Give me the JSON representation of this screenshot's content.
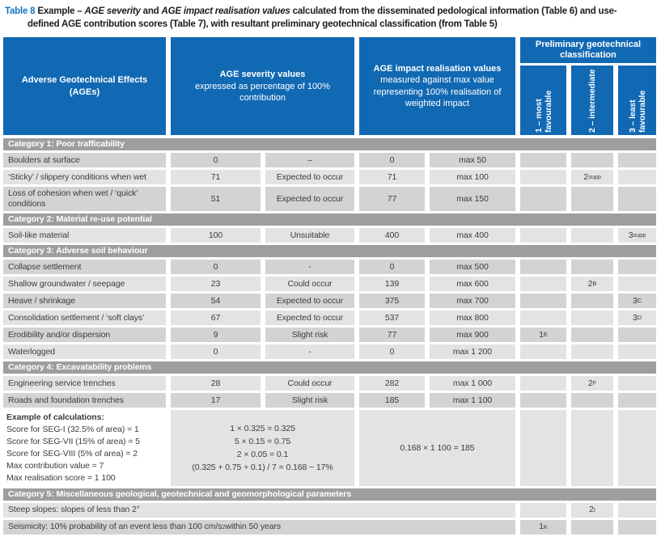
{
  "colors": {
    "accent_blue": "#1269b3",
    "caption_blue": "#1472bd",
    "category_bar_gray": "#9e9e9e",
    "row_dark": "#d3d3d3",
    "row_light": "#e3e3e3"
  },
  "title": {
    "label": "Table 8",
    "pre": "Example – ",
    "italic1": "AGE severity",
    "mid": " and ",
    "italic2": "AGE impact realisation values",
    "rest_line1": " calculated from the disseminated pedological information (Table 6) and use-",
    "line2": "defined AGE contribution scores (Table 7), with resultant preliminary geotechnical classification (from Table 5)"
  },
  "header": {
    "col_ages": "Adverse Geotechnical Effects (AGEs)",
    "col_severity_bold": "AGE severity values",
    "col_severity_rest": "expressed as percentage of 100% contribution",
    "col_impact_bold": "AGE impact realisation values",
    "col_impact_rest": "measured against max value representing 100% realisation of weighted impact",
    "col_class_group": "Preliminary geotechnical classification",
    "col_class1": "1 – most favourable",
    "col_class2": "2 – intermediate",
    "col_class3": "3 – least favourable"
  },
  "categories": [
    {
      "label": "Category 1: Poor trafficability",
      "rows": [
        {
          "name": "Boulders at surface",
          "severity": "0",
          "likelihood": "–",
          "impact": "0",
          "max": "max 50"
        },
        {
          "name": "‘Sticky’ / slippery conditions when wet",
          "severity": "71",
          "likelihood": "Expected to occur",
          "impact": "71",
          "max": "max 100",
          "c2": "2",
          "c2sub": "supp"
        },
        {
          "name": "Loss of cohesion when wet / ‘quick’ conditions",
          "severity": "51",
          "likelihood": "Expected to occur",
          "impact": "77",
          "max": "max 150"
        }
      ]
    },
    {
      "label": "Category 2: Material re-use potential",
      "rows": [
        {
          "name": "Soil-like material",
          "severity": "100",
          "likelihood": "Unsuitable",
          "impact": "400",
          "max": "max 400",
          "c3": "3",
          "c3sub": "supp"
        }
      ]
    },
    {
      "label": "Category 3: Adverse soil behaviour",
      "rows": [
        {
          "name": "Collapse settlement",
          "severity": "0",
          "likelihood": "-",
          "impact": "0",
          "max": "max 500"
        },
        {
          "name": "Shallow groundwater / seepage",
          "severity": "23",
          "likelihood": "Could occur",
          "impact": "139",
          "max": "max 600",
          "c2": "2",
          "c2sub": "B"
        },
        {
          "name": "Heave / shrinkage",
          "severity": "54",
          "likelihood": "Expected to occur",
          "impact": "375",
          "max": "max 700",
          "c3": "3",
          "c3sub": "C"
        },
        {
          "name": "Consolidation settlement / ‘soft clays’",
          "severity": "67",
          "likelihood": "Expected to occur",
          "impact": "537",
          "max": "max 800",
          "c3": "3",
          "c3sub": "D"
        },
        {
          "name": "Erodibility and/or dispersion",
          "severity": "9",
          "likelihood": "Slight risk",
          "impact": "77",
          "max": "max 900",
          "c1": "1",
          "c1sub": "E"
        },
        {
          "name": "Waterlogged",
          "severity": "0",
          "likelihood": "-",
          "impact": "0",
          "max": "max 1 200"
        }
      ]
    },
    {
      "label": "Category 4: Excavatability problems",
      "rows": [
        {
          "name": "Engineering service trenches",
          "severity": "28",
          "likelihood": "Could occur",
          "impact": "282",
          "max": "max 1 000",
          "c2": "2",
          "c2sub": "F"
        },
        {
          "name": "Roads and foundation trenches",
          "severity": "17",
          "likelihood": "Slight risk",
          "impact": "185",
          "max": "max 1 100"
        }
      ]
    },
    {
      "label": "Category 5: Miscellaneous geological, geotechnical and geomorphological parameters",
      "rows": [
        {
          "name": "Steep slopes: slopes of less than 2°",
          "c2": "2",
          "c2sub": "I"
        },
        {
          "name_pre": "Seismicity: 10% probability of an event less than 100 cm/s",
          "name_sup": "2",
          "name_post": " within 50 years",
          "c1": "1",
          "c1sub": "K"
        }
      ]
    }
  ],
  "example": {
    "title": "Example of calculations:",
    "lines": [
      "Score for SEG-I (32.5% of area) = 1",
      "Score for SEG-VII (15% of area) = 5",
      "Score for SEG-VIII (5% of area) = 2",
      "Max contribution value = 7",
      "Max realisation score = 1 100"
    ],
    "calc_lines": [
      "1 × 0.325 = 0.325",
      "5 × 0.15 = 0.75",
      "2 × 0.05 = 0.1",
      "(0.325 + 0.75 + 0.1) / 7 = 0.168 ~ 17%"
    ],
    "impact_line": "0.168 × 1 100 = 185"
  }
}
